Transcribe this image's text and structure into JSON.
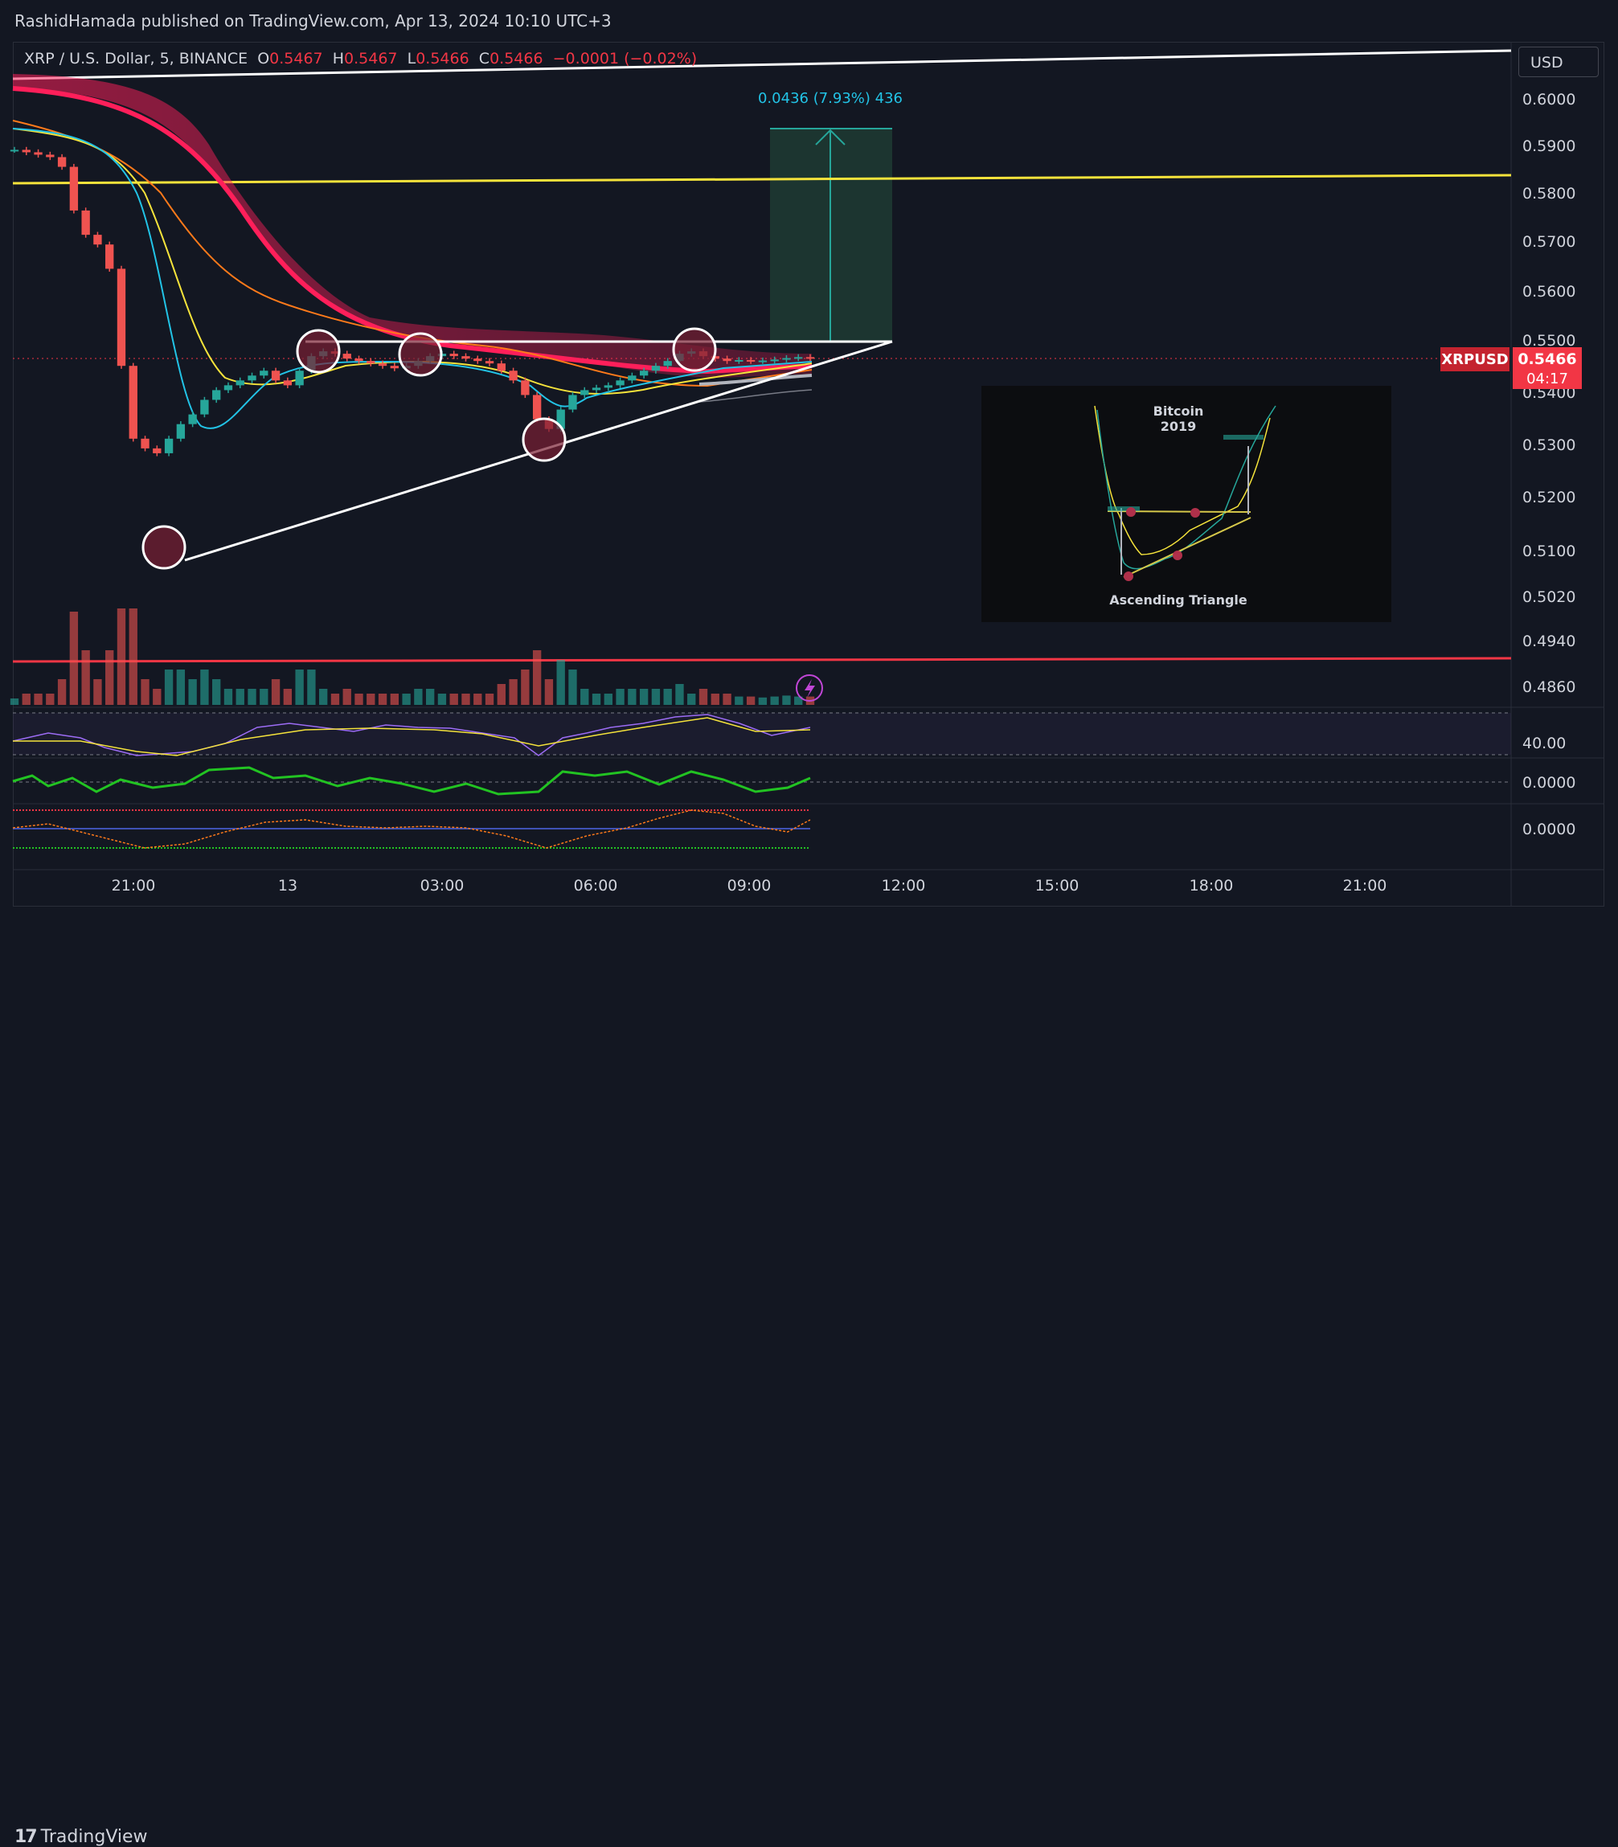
{
  "header": {
    "publisher": "RashidHamada published on TradingView.com, Apr 13, 2024 10:10 UTC+3"
  },
  "legend": {
    "symbol": "XRP / U.S. Dollar, 5, BINANCE",
    "o_label": "O",
    "o_value": "0.5467",
    "h_label": "H",
    "h_value": "0.5467",
    "l_label": "L",
    "l_value": "0.5466",
    "c_label": "C",
    "c_value": "0.5466",
    "change": "−0.0001 (−0.02%)"
  },
  "currency": "USD",
  "price_tag": {
    "symbol": "XRPUSD",
    "price": "0.5466",
    "countdown": "04:17"
  },
  "measure_label": "0.0436 (7.93%) 436",
  "inset": {
    "title_line1": "Bitcoin",
    "title_line2": "2019",
    "caption": "Ascending Triangle"
  },
  "osc": {
    "rsi_label": "40.00",
    "mid_label": "0.0000",
    "low_label": "0.0000"
  },
  "footer": {
    "brand": "TradingView"
  },
  "colors": {
    "bg": "#131722",
    "up": "#26a69a",
    "down": "#ef5350",
    "accent_red": "#f23645",
    "yellow": "#f5e33b",
    "ma_pink": "#ff1f5a",
    "cyan": "#22c3e6",
    "orange": "#ff7a1a"
  },
  "chart_data": {
    "type": "line",
    "title": "XRP / U.S. Dollar, 5, BINANCE",
    "y_ticks": [
      "0.6000",
      "0.5900",
      "0.5800",
      "0.5700",
      "0.5600",
      "0.5500",
      "0.5400",
      "0.5300",
      "0.5200",
      "0.5100",
      "0.5020",
      "0.4940",
      "0.4860"
    ],
    "x_ticks": [
      "21:00",
      "13",
      "03:00",
      "06:00",
      "09:00",
      "12:00",
      "15:00",
      "18:00",
      "21:00"
    ],
    "price_series": [
      [
        0,
        0.5895
      ],
      [
        1,
        0.589
      ],
      [
        2,
        0.5885
      ],
      [
        3,
        0.588
      ],
      [
        4,
        0.586
      ],
      [
        5,
        0.577
      ],
      [
        6,
        0.572
      ],
      [
        7,
        0.57
      ],
      [
        8,
        0.565
      ],
      [
        9,
        0.545
      ],
      [
        10,
        0.53
      ],
      [
        11,
        0.528
      ],
      [
        12,
        0.527
      ],
      [
        13,
        0.53
      ],
      [
        14,
        0.533
      ],
      [
        15,
        0.535
      ],
      [
        16,
        0.538
      ],
      [
        17,
        0.54
      ],
      [
        18,
        0.541
      ],
      [
        19,
        0.542
      ],
      [
        20,
        0.543
      ],
      [
        21,
        0.544
      ],
      [
        22,
        0.542
      ],
      [
        23,
        0.541
      ],
      [
        24,
        0.544
      ],
      [
        25,
        0.547
      ],
      [
        26,
        0.548
      ],
      [
        27,
        0.5475
      ],
      [
        28,
        0.5465
      ],
      [
        29,
        0.546
      ],
      [
        30,
        0.5455
      ],
      [
        31,
        0.545
      ],
      [
        32,
        0.5445
      ],
      [
        33,
        0.545
      ],
      [
        34,
        0.546
      ],
      [
        35,
        0.547
      ],
      [
        36,
        0.5475
      ],
      [
        37,
        0.547
      ],
      [
        38,
        0.5465
      ],
      [
        39,
        0.546
      ],
      [
        40,
        0.5455
      ],
      [
        41,
        0.544
      ],
      [
        42,
        0.542
      ],
      [
        43,
        0.539
      ],
      [
        44,
        0.534
      ],
      [
        45,
        0.532
      ],
      [
        46,
        0.536
      ],
      [
        47,
        0.539
      ],
      [
        48,
        0.54
      ],
      [
        49,
        0.5405
      ],
      [
        50,
        0.541
      ],
      [
        51,
        0.542
      ],
      [
        52,
        0.543
      ],
      [
        53,
        0.544
      ],
      [
        54,
        0.545
      ],
      [
        55,
        0.546
      ],
      [
        56,
        0.5475
      ],
      [
        57,
        0.548
      ],
      [
        58,
        0.547
      ],
      [
        59,
        0.5465
      ],
      [
        60,
        0.546
      ],
      [
        61,
        0.5462
      ],
      [
        62,
        0.546
      ],
      [
        63,
        0.5461
      ],
      [
        64,
        0.5463
      ],
      [
        65,
        0.5466
      ],
      [
        66,
        0.5468
      ],
      [
        67,
        0.5466
      ]
    ],
    "levels": [
      {
        "name": "yellow-resistance",
        "y0": 0.5815,
        "y1": 0.5822
      },
      {
        "name": "red-support",
        "y0": 0.4905,
        "y1": 0.4908
      },
      {
        "name": "triangle-top",
        "y": 0.55
      },
      {
        "name": "triangle-base",
        "y0": 0.5085,
        "y1": 0.55
      }
    ],
    "target": 0.5936,
    "current": 0.5466
  }
}
